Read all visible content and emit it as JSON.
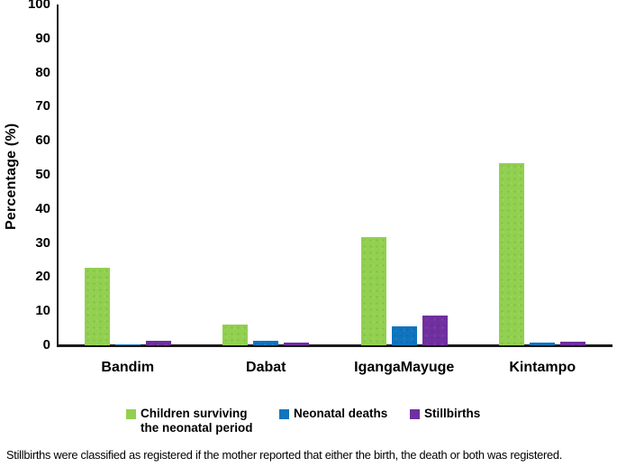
{
  "figure": {
    "y_axis_title": "Percentage (%)",
    "footnote": "Stillbirths were classified as registered if the mother reported that either the birth, the death or both was registered."
  },
  "chart_data": {
    "type": "bar",
    "title": "",
    "xlabel": "",
    "ylabel": "Percentage (%)",
    "ylim": [
      0,
      100
    ],
    "yticks": [
      0,
      10,
      20,
      30,
      40,
      50,
      60,
      70,
      80,
      90,
      100
    ],
    "grid": false,
    "legend_position": "bottom",
    "categories": [
      "Bandim",
      "Dabat",
      "IgangaMayuge",
      "Kintampo"
    ],
    "series": [
      {
        "name": "Children surviving the neonatal period",
        "legend_label": "Children surviving\nthe neonatal period",
        "color": "#92d050",
        "values": [
          22.8,
          6.0,
          31.8,
          53.4
        ]
      },
      {
        "name": "Neonatal deaths",
        "legend_label": "Neonatal deaths",
        "color": "#1074bf",
        "values": [
          0.4,
          1.2,
          5.6,
          0.9
        ]
      },
      {
        "name": "Stillbirths",
        "legend_label": "Stillbirths",
        "color": "#7030a0",
        "values": [
          1.4,
          0.8,
          8.8,
          1.0
        ]
      }
    ],
    "footnote": "Stillbirths were classified as registered if the mother reported that either the birth, the death or both was registered."
  }
}
